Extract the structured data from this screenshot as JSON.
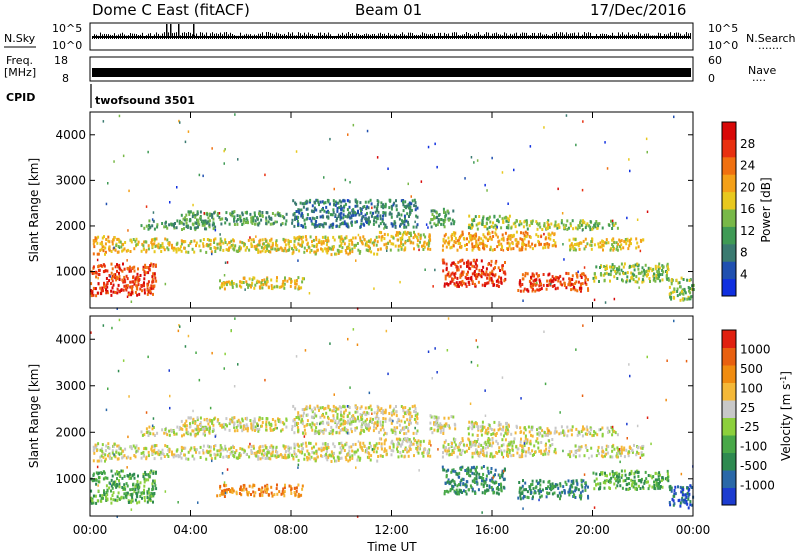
{
  "header": {
    "title": "Dome C East (fitACF)",
    "beam": "Beam 01",
    "date": "17/Dec/2016"
  },
  "top_panels": {
    "nsky_label": "N.Sky",
    "nsearch_label": "N.Search",
    "nsearch_dots": "·······",
    "left_scale_top": "10^5",
    "left_scale_bottom": "10^0",
    "right_scale_top": "10^5",
    "right_scale_bottom": "10^0",
    "freq_label": "Freq.",
    "freq_unit": "[MHz]",
    "freq_tick_top": "18",
    "freq_tick_bottom": "8",
    "nave_label": "Nave",
    "nave_dots": "····",
    "nave_tick_top": "60",
    "nave_tick_bottom": "0",
    "cpid_label": "CPID",
    "cpid_value": "twofsound 3501"
  },
  "chart_data": [
    {
      "type": "heatmap",
      "name": "power",
      "ylabel": "Slant Range [km]",
      "ylim": [
        200,
        4500
      ],
      "yticks": [
        "1000",
        "2000",
        "3000",
        "4000"
      ],
      "xlim_hours": [
        0,
        24
      ],
      "xticks": [
        "00:00",
        "04:00",
        "08:00",
        "12:00",
        "16:00",
        "20:00",
        "00:00"
      ],
      "colorbar": {
        "label": "Power [dB]",
        "ticks": [
          "4",
          "8",
          "12",
          "16",
          "20",
          "24",
          "28"
        ],
        "colors": [
          "#1030e0",
          "#2050b0",
          "#3a7a70",
          "#3f9a55",
          "#78b848",
          "#e8c81e",
          "#f4a018",
          "#f07010",
          "#e83010",
          "#d80808"
        ]
      },
      "bands": [
        {
          "t0": 0.0,
          "t1": 2.6,
          "r0": 500,
          "r1": 1200,
          "level": 8
        },
        {
          "t0": 0.1,
          "t1": 1.0,
          "r0": 1400,
          "r1": 1800,
          "level": 6
        },
        {
          "t0": 1.0,
          "t1": 8.0,
          "r0": 1450,
          "r1": 1750,
          "level": 5
        },
        {
          "t0": 2.0,
          "t1": 5.0,
          "r0": 1950,
          "r1": 2150,
          "level": 3
        },
        {
          "t0": 3.6,
          "t1": 7.8,
          "r0": 2050,
          "r1": 2350,
          "level": 3
        },
        {
          "t0": 5.0,
          "t1": 8.5,
          "r0": 650,
          "r1": 900,
          "level": 5
        },
        {
          "t0": 8.0,
          "t1": 11.5,
          "r0": 1400,
          "r1": 1800,
          "level": 5
        },
        {
          "t0": 8.0,
          "t1": 13.0,
          "r0": 2000,
          "r1": 2600,
          "level": 2
        },
        {
          "t0": 11.5,
          "t1": 13.5,
          "r0": 1500,
          "r1": 1900,
          "level": 5
        },
        {
          "t0": 13.5,
          "t1": 14.5,
          "r0": 2000,
          "r1": 2400,
          "level": 3
        },
        {
          "t0": 14.0,
          "t1": 16.5,
          "r0": 700,
          "r1": 1300,
          "level": 8
        },
        {
          "t0": 14.0,
          "t1": 18.5,
          "r0": 1500,
          "r1": 1900,
          "level": 6
        },
        {
          "t0": 15.0,
          "t1": 17.0,
          "r0": 1950,
          "r1": 2250,
          "level": 4
        },
        {
          "t0": 17.0,
          "t1": 21.0,
          "r0": 1950,
          "r1": 2150,
          "level": 4
        },
        {
          "t0": 17.0,
          "t1": 19.8,
          "r0": 600,
          "r1": 1000,
          "level": 8
        },
        {
          "t0": 19.0,
          "t1": 22.0,
          "r0": 1500,
          "r1": 1750,
          "level": 5
        },
        {
          "t0": 20.0,
          "t1": 23.0,
          "r0": 800,
          "r1": 1200,
          "level": 4
        },
        {
          "t0": 23.0,
          "t1": 24.0,
          "r0": 400,
          "r1": 900,
          "level": 4
        }
      ]
    },
    {
      "type": "heatmap",
      "name": "velocity",
      "ylabel": "Slant Range [km]",
      "ylim": [
        200,
        4500
      ],
      "yticks": [
        "1000",
        "2000",
        "3000",
        "4000"
      ],
      "xlim_hours": [
        0,
        24
      ],
      "xticks": [
        "00:00",
        "04:00",
        "08:00",
        "12:00",
        "16:00",
        "20:00",
        "00:00"
      ],
      "xlabel": "Time UT",
      "colorbar": {
        "label": "Velocity [m s^-1]",
        "ticks": [
          "1000",
          "500",
          "100",
          "25",
          "-25",
          "-100",
          "-500",
          "-1000"
        ],
        "colors": [
          "#1c3cd0",
          "#2a68a8",
          "#2e8a50",
          "#48a848",
          "#8cd03c",
          "#c8c8c8",
          "#f4b838",
          "#f08c10",
          "#e86010",
          "#e02010"
        ]
      },
      "bands": [
        {
          "t0": 0.0,
          "t1": 2.6,
          "r0": 500,
          "r1": 1200,
          "level": 3
        },
        {
          "t0": 0.1,
          "t1": 1.0,
          "r0": 1400,
          "r1": 1800,
          "level": 5
        },
        {
          "t0": 1.0,
          "t1": 8.0,
          "r0": 1450,
          "r1": 1750,
          "level": 5
        },
        {
          "t0": 2.0,
          "t1": 5.0,
          "r0": 1950,
          "r1": 2150,
          "level": 5
        },
        {
          "t0": 3.6,
          "t1": 7.8,
          "r0": 2050,
          "r1": 2350,
          "level": 5
        },
        {
          "t0": 5.0,
          "t1": 8.5,
          "r0": 650,
          "r1": 900,
          "level": 7
        },
        {
          "t0": 8.0,
          "t1": 11.5,
          "r0": 1400,
          "r1": 1800,
          "level": 5
        },
        {
          "t0": 8.0,
          "t1": 13.0,
          "r0": 2000,
          "r1": 2600,
          "level": 5
        },
        {
          "t0": 11.5,
          "t1": 13.5,
          "r0": 1500,
          "r1": 1900,
          "level": 5
        },
        {
          "t0": 13.5,
          "t1": 14.5,
          "r0": 2000,
          "r1": 2400,
          "level": 5
        },
        {
          "t0": 14.0,
          "t1": 16.5,
          "r0": 700,
          "r1": 1300,
          "level": 2
        },
        {
          "t0": 14.0,
          "t1": 18.5,
          "r0": 1500,
          "r1": 1900,
          "level": 5
        },
        {
          "t0": 15.0,
          "t1": 17.0,
          "r0": 1950,
          "r1": 2250,
          "level": 5
        },
        {
          "t0": 17.0,
          "t1": 21.0,
          "r0": 1950,
          "r1": 2150,
          "level": 5
        },
        {
          "t0": 17.0,
          "t1": 19.8,
          "r0": 600,
          "r1": 1000,
          "level": 2
        },
        {
          "t0": 19.0,
          "t1": 22.0,
          "r0": 1500,
          "r1": 1750,
          "level": 5
        },
        {
          "t0": 20.0,
          "t1": 23.0,
          "r0": 800,
          "r1": 1200,
          "level": 3
        },
        {
          "t0": 23.0,
          "t1": 24.0,
          "r0": 400,
          "r1": 900,
          "level": 1
        }
      ]
    }
  ]
}
